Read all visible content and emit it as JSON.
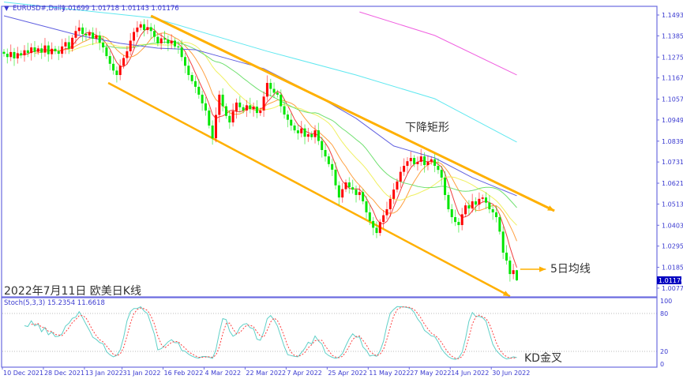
{
  "header": {
    "symbol": "EURUSD#,Daily",
    "ohlc": "1.01699 1.01718 1.01143 1.01176",
    "menu_icon": "triangle-down-icon"
  },
  "caption": "2022年7月11日 欧美日K线",
  "colors": {
    "bull": "#ff0000",
    "bear": "#00e600",
    "ma5": "#f04040",
    "ma10": "#ffa040",
    "ma20": "#f0f060",
    "ma30": "#70e070",
    "ma_blue": "#6060e0",
    "ma_cyan": "#60e8f0",
    "ma_magenta": "#f060e0",
    "trendline": "#ffb000",
    "frame": "#6a6ae0",
    "stoch_k": "#60d0c8",
    "stoch_d": "#ff4040"
  },
  "chart_data": {
    "type": "candlestick",
    "symbol": "EURUSD#",
    "timeframe": "Daily",
    "last_bar": {
      "open": 1.01699,
      "high": 1.01718,
      "low": 1.01143,
      "close": 1.01176
    },
    "closes": [
      1.1292,
      1.1275,
      1.1301,
      1.1268,
      1.1295,
      1.1284,
      1.131,
      1.1296,
      1.1325,
      1.1302,
      1.132,
      1.1298,
      1.1335,
      1.129,
      1.1318,
      1.1305,
      1.1292,
      1.133,
      1.1352,
      1.1318,
      1.1375,
      1.141,
      1.1428,
      1.1395,
      1.1387,
      1.1402,
      1.137,
      1.1387,
      1.135,
      1.1325,
      1.128,
      1.124,
      1.1205,
      1.1182,
      1.123,
      1.127,
      1.1305,
      1.136,
      1.1405,
      1.1428,
      1.1445,
      1.1415,
      1.143,
      1.141,
      1.138,
      1.1346,
      1.1372,
      1.1366,
      1.1345,
      1.136,
      1.133,
      1.1325,
      1.1275,
      1.123,
      1.1182,
      1.115,
      1.1121,
      1.108,
      1.1035,
      1.0998,
      1.092,
      1.0854,
      1.0975,
      1.108,
      1.102,
      1.097,
      1.0936,
      1.0995,
      1.1039,
      1.1015,
      1.0998,
      1.1025,
      1.1005,
      1.1018,
      1.0985,
      1.0998,
      1.107,
      1.1141,
      1.111,
      1.109,
      1.108,
      1.102,
      1.0977,
      1.095,
      1.092,
      1.0895,
      1.088,
      1.0905,
      1.0862,
      1.0875,
      1.086,
      1.0895,
      1.084,
      1.0793,
      1.076,
      1.072,
      1.0691,
      1.061,
      1.0547,
      1.059,
      1.0625,
      1.06,
      1.0588,
      1.056,
      1.0575,
      1.0527,
      1.047,
      1.0425,
      1.039,
      1.0363,
      1.042,
      1.0455,
      1.0486,
      1.054,
      1.0588,
      1.063,
      1.068,
      1.0711,
      1.0735,
      1.0752,
      1.072,
      1.0732,
      1.076,
      1.0715,
      1.0732,
      1.0745,
      1.0711,
      1.069,
      1.065,
      1.056,
      1.0486,
      1.0445,
      1.042,
      1.0404,
      1.046,
      1.0506,
      1.049,
      1.0527,
      1.051,
      1.054,
      1.0547,
      1.052,
      1.0486,
      1.047,
      1.0445,
      1.037,
      1.0261,
      1.022,
      1.015,
      1.01699,
      1.01176
    ],
    "moving_averages_computed": [
      {
        "period": 5,
        "color": "#f04040"
      },
      {
        "period": 10,
        "color": "#ffa040"
      },
      {
        "period": 20,
        "color": "#f0f060"
      },
      {
        "period": 30,
        "color": "#70e070"
      }
    ],
    "moving_averages_long": [
      {
        "color": "#6060e0",
        "points": [
          [
            0,
            1.1489
          ],
          [
            22,
            1.1387
          ],
          [
            34,
            1.1346
          ],
          [
            45,
            1.1321
          ],
          [
            56,
            1.1313
          ],
          [
            66,
            1.1264
          ],
          [
            76,
            1.1215
          ],
          [
            91,
            1.108
          ],
          [
            103,
            1.0957
          ],
          [
            114,
            1.0814
          ],
          [
            126,
            1.0752
          ],
          [
            137,
            1.065
          ],
          [
            150,
            1.0556
          ]
        ]
      },
      {
        "color": "#60e8f0",
        "points": [
          [
            0,
            1.156
          ],
          [
            44,
            1.1477
          ],
          [
            77,
            1.1305
          ],
          [
            103,
            1.1182
          ],
          [
            126,
            1.1059
          ],
          [
            150,
            1.0834
          ]
        ]
      },
      {
        "color": "#f060e0",
        "points": [
          [
            104,
            1.1509
          ],
          [
            126,
            1.1387
          ],
          [
            150,
            1.1182
          ]
        ]
      }
    ],
    "price_ticks": [
      "1.14930",
      "1.13850",
      "1.12750",
      "1.11670",
      "1.10570",
      "1.09490",
      "1.08390",
      "1.07310",
      "1.06210",
      "1.05130",
      "1.04030",
      "1.02950",
      "1.01850",
      "1.00770"
    ],
    "current_price_label": "1.01176",
    "date_ticks": [
      {
        "bar": 0,
        "label": "10 Dec 2021"
      },
      {
        "bar": 12,
        "label": "28 Dec 2021"
      },
      {
        "bar": 24,
        "label": "13 Jan 2022"
      },
      {
        "bar": 35,
        "label": "31 Jan 2022"
      },
      {
        "bar": 47,
        "label": "16 Feb 2022"
      },
      {
        "bar": 59,
        "label": "4 Mar 2022"
      },
      {
        "bar": 71,
        "label": "22 Mar 2022"
      },
      {
        "bar": 83,
        "label": "7 Apr 2022"
      },
      {
        "bar": 95,
        "label": "25 Apr 2022"
      },
      {
        "bar": 107,
        "label": "11 May 2022"
      },
      {
        "bar": 119,
        "label": "27 May 2022"
      },
      {
        "bar": 131,
        "label": "14 Jun 2022"
      },
      {
        "bar": 143,
        "label": "30 Jun 2022"
      }
    ],
    "trendlines": [
      {
        "name": "upper",
        "from": [
          43,
          1.1489
        ],
        "to": [
          161,
          1.0478
        ]
      },
      {
        "name": "lower",
        "from": [
          30.5,
          1.1141
        ],
        "to": [
          148,
          1.0035
        ]
      }
    ],
    "annotations": [
      {
        "text": "下降矩形",
        "bar": 117,
        "price": 1.093
      },
      {
        "text": "5日均线",
        "bar": 160,
        "price": 1.0168,
        "arrow_from": [
          151,
          1.0175
        ],
        "arrow_to": [
          158.5,
          1.0175
        ]
      }
    ],
    "stochastic": {
      "label": "Stoch(5,3,3) 15.2354 11.6618",
      "params": [
        5,
        3,
        3
      ],
      "k": 15.2354,
      "d": 11.6618,
      "levels": [
        "100",
        "80",
        "20",
        "0"
      ],
      "annotation": "KD金叉"
    }
  }
}
